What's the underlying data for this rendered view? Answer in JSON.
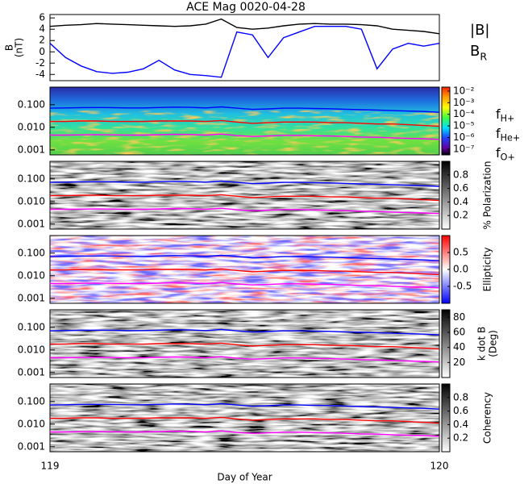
{
  "chart_data": [
    {
      "type": "line",
      "title": "ACE Mag 0020-04-28",
      "y_label": [
        "B",
        "(nT)"
      ],
      "x": [
        119.0,
        119.04,
        119.08,
        119.12,
        119.16,
        119.2,
        119.24,
        119.28,
        119.32,
        119.36,
        119.4,
        119.44,
        119.48,
        119.52,
        119.56,
        119.6,
        119.64,
        119.68,
        119.72,
        119.76,
        119.8,
        119.84,
        119.88,
        119.92,
        119.96,
        120.0
      ],
      "series": [
        {
          "name": "|B|",
          "color": "#000000",
          "values": [
            4.5,
            4.7,
            4.8,
            5.0,
            4.9,
            4.8,
            4.7,
            4.6,
            4.5,
            4.6,
            4.9,
            5.8,
            4.3,
            4.0,
            4.2,
            4.6,
            4.9,
            5.0,
            4.9,
            4.9,
            4.8,
            4.6,
            4.0,
            3.8,
            3.6,
            3.2
          ]
        },
        {
          "name": "BR",
          "color": "#0000ff",
          "values": [
            1.5,
            -1.0,
            -2.5,
            -3.5,
            -3.8,
            -3.6,
            -3.0,
            -1.5,
            -3.2,
            -4.0,
            -4.2,
            -4.5,
            3.5,
            3.0,
            -1.0,
            2.5,
            3.5,
            4.5,
            4.5,
            4.5,
            4.0,
            -3.0,
            0.5,
            1.5,
            1.0,
            1.5
          ]
        }
      ],
      "xlim": [
        119,
        120
      ],
      "ylim": [
        -5.1,
        6.6
      ],
      "yticks": [
        -4,
        -2,
        0,
        2,
        4,
        6
      ]
    },
    {
      "type": "spectrogram",
      "colormap": "rainbow",
      "log_y": true,
      "x": [
        119.0,
        119.04,
        119.08,
        119.12,
        119.16,
        119.2,
        119.24,
        119.28,
        119.32,
        119.36,
        119.4,
        119.44,
        119.48,
        119.52,
        119.56,
        119.6,
        119.64,
        119.68,
        119.72,
        119.76,
        119.8,
        119.84,
        119.88,
        119.92,
        119.96,
        120.0
      ],
      "series": [
        {
          "name": "fH+",
          "color": "#0000ff",
          "values": [
            0.07,
            0.072,
            0.074,
            0.075,
            0.074,
            0.072,
            0.072,
            0.075,
            0.078,
            0.076,
            0.072,
            0.08,
            0.07,
            0.062,
            0.065,
            0.07,
            0.07,
            0.068,
            0.066,
            0.063,
            0.06,
            0.058,
            0.055,
            0.052,
            0.05,
            0.046
          ]
        },
        {
          "name": "fHe+",
          "color": "#ff0000",
          "values": [
            0.018,
            0.018,
            0.019,
            0.019,
            0.018,
            0.018,
            0.018,
            0.019,
            0.019,
            0.019,
            0.018,
            0.02,
            0.017,
            0.015,
            0.016,
            0.017,
            0.017,
            0.017,
            0.016,
            0.016,
            0.015,
            0.014,
            0.014,
            0.013,
            0.012,
            0.011
          ]
        },
        {
          "name": "fO+",
          "color": "#ff00ff",
          "values": [
            0.0045,
            0.0045,
            0.0046,
            0.0047,
            0.0046,
            0.0045,
            0.0045,
            0.0047,
            0.0049,
            0.0048,
            0.0045,
            0.005,
            0.0043,
            0.0039,
            0.0041,
            0.0044,
            0.0044,
            0.0042,
            0.0041,
            0.0039,
            0.0037,
            0.0036,
            0.0034,
            0.0032,
            0.0031,
            0.0029
          ]
        }
      ],
      "xlim": [
        119,
        120
      ],
      "ylim": [
        0.0006,
        0.6
      ],
      "yticks": [
        {
          "value": 0.1,
          "label": "0.100"
        },
        {
          "value": 0.01,
          "label": "0.010"
        },
        {
          "value": 0.001,
          "label": "0.001"
        }
      ],
      "colorbar": {
        "log": true,
        "lim": [
          3.2e-08,
          0.022
        ],
        "ticks": [
          {
            "value": 0.01,
            "label": "10⁻²"
          },
          {
            "value": 0.001,
            "label": "10⁻³"
          },
          {
            "value": 0.0001,
            "label": "10⁻⁴"
          },
          {
            "value": 1e-05,
            "label": "10⁻⁵"
          },
          {
            "value": 1e-06,
            "label": "10⁻⁶"
          },
          {
            "value": 1e-07,
            "label": "10⁻⁷"
          }
        ]
      }
    },
    {
      "type": "spectrogram",
      "colormap": "gray",
      "log_y": true,
      "xlim": [
        119,
        120
      ],
      "ylim": [
        0.0006,
        0.6
      ],
      "yticks": [
        {
          "value": 0.1,
          "label": "0.100"
        },
        {
          "value": 0.01,
          "label": "0.010"
        },
        {
          "value": 0.001,
          "label": "0.001"
        }
      ],
      "colorbar": {
        "label": [
          "% Polarization"
        ],
        "lim": [
          0,
          1
        ],
        "ticks": [
          0.8,
          0.6,
          0.4,
          0.2
        ]
      }
    },
    {
      "type": "spectrogram",
      "colormap": "bwr",
      "log_y": true,
      "xlim": [
        119,
        120
      ],
      "ylim": [
        0.0006,
        0.6
      ],
      "yticks": [
        {
          "value": 0.1,
          "label": "0.100"
        },
        {
          "value": 0.01,
          "label": "0.010"
        },
        {
          "value": 0.001,
          "label": "0.001"
        }
      ],
      "colorbar": {
        "label": [
          "Ellipticity"
        ],
        "lim": [
          -1,
          1
        ],
        "ticks": [
          0.5,
          {
            "value": 0,
            "label": "0.0"
          },
          -0.5
        ]
      }
    },
    {
      "type": "spectrogram",
      "colormap": "gray",
      "log_y": true,
      "xlim": [
        119,
        120
      ],
      "ylim": [
        0.0006,
        0.6
      ],
      "yticks": [
        {
          "value": 0.1,
          "label": "0.100"
        },
        {
          "value": 0.01,
          "label": "0.010"
        },
        {
          "value": 0.001,
          "label": "0.001"
        }
      ],
      "colorbar": {
        "label": [
          "k dot B",
          "(Deg)"
        ],
        "lim": [
          0,
          90
        ],
        "ticks": [
          80,
          60,
          40,
          20
        ]
      }
    },
    {
      "type": "spectrogram",
      "colormap": "gray",
      "log_y": true,
      "xlim": [
        119,
        120
      ],
      "ylim": [
        0.0006,
        0.6
      ],
      "yticks": [
        {
          "value": 0.1,
          "label": "0.100"
        },
        {
          "value": 0.01,
          "label": "0.010"
        },
        {
          "value": 0.001,
          "label": "0.001"
        }
      ],
      "colorbar": {
        "label": [
          "Coherency"
        ],
        "lim": [
          0,
          1
        ],
        "ticks": [
          0.8,
          0.6,
          0.4,
          0.2
        ]
      },
      "xticks": [
        119,
        120
      ],
      "x_label": "Day of Year"
    }
  ]
}
